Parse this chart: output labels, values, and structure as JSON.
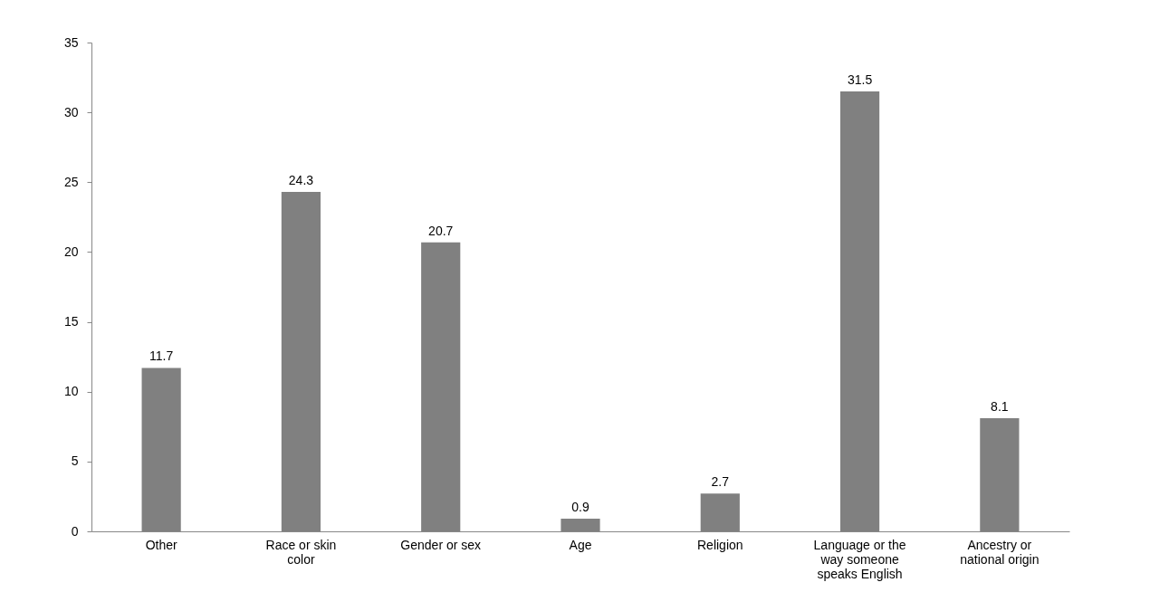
{
  "chart_data": {
    "type": "bar",
    "categories": [
      "Other",
      "Race or skin color",
      "Gender or sex",
      "Age",
      "Religion",
      "Language or the way someone speaks English",
      "Ancestry or national origin"
    ],
    "values": [
      11.7,
      24.3,
      20.7,
      0.9,
      2.7,
      31.5,
      8.1
    ],
    "color": "#808080",
    "ylim": [
      0,
      35
    ],
    "yticks": [
      0,
      5,
      10,
      15,
      20,
      25,
      30,
      35
    ],
    "grid": false,
    "data_labels": true
  }
}
